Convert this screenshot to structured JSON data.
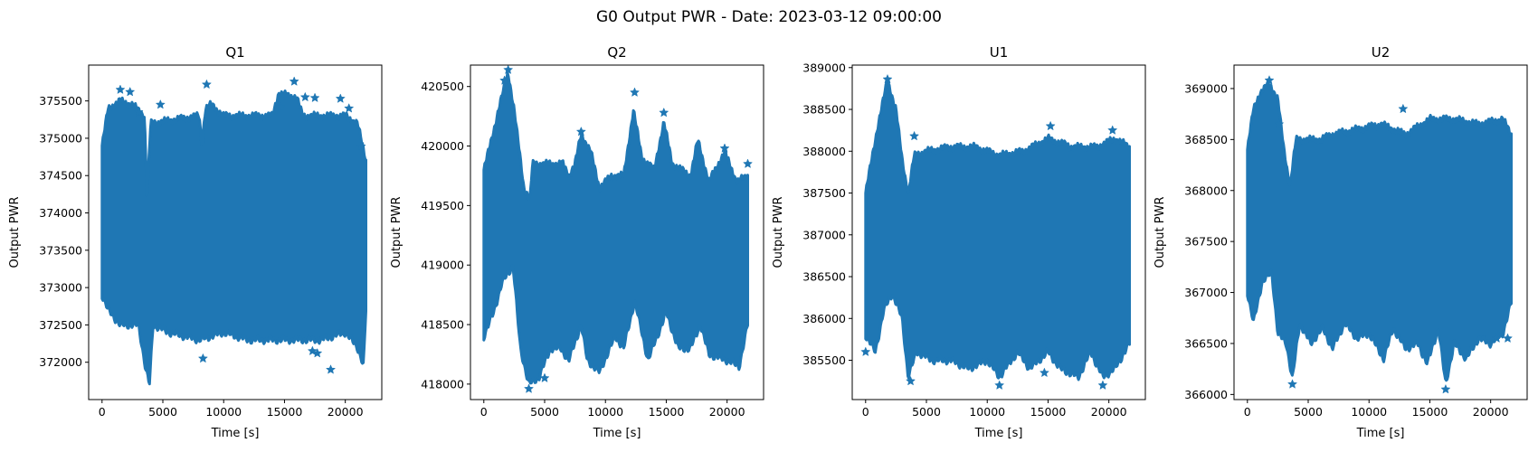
{
  "figure": {
    "suptitle": "G0 Output PWR - Date: 2023-03-12 09:00:00"
  },
  "colors": {
    "series": "#1f77b4",
    "axes": "#000000",
    "background": "#ffffff"
  },
  "chart_data": [
    {
      "type": "scatter",
      "marker": "star",
      "title": "Q1",
      "xlabel": "Time [s]",
      "ylabel": "Output PWR",
      "xlim": [
        -1100,
        23000
      ],
      "ylim": [
        371500,
        375980
      ],
      "xticks": [
        0,
        5000,
        10000,
        15000,
        20000
      ],
      "yticks": [
        372000,
        372500,
        373000,
        373500,
        374000,
        374500,
        375000,
        375500
      ],
      "x_range": [
        0,
        21700
      ],
      "band_upper": [
        [
          0,
          374900
        ],
        [
          500,
          375400
        ],
        [
          1500,
          375500
        ],
        [
          2500,
          375450
        ],
        [
          3500,
          375300
        ],
        [
          3700,
          374200
        ],
        [
          4000,
          375200
        ],
        [
          6000,
          375250
        ],
        [
          8000,
          375300
        ],
        [
          8200,
          374900
        ],
        [
          8500,
          375400
        ],
        [
          9000,
          375450
        ],
        [
          10000,
          375300
        ],
        [
          12000,
          375300
        ],
        [
          14000,
          375300
        ],
        [
          14500,
          375600
        ],
        [
          16000,
          375550
        ],
        [
          16500,
          375300
        ],
        [
          18000,
          375300
        ],
        [
          20000,
          375300
        ],
        [
          21000,
          375200
        ],
        [
          21700,
          374700
        ]
      ],
      "band_lower": [
        [
          0,
          372900
        ],
        [
          500,
          372700
        ],
        [
          1500,
          372500
        ],
        [
          3000,
          372500
        ],
        [
          3600,
          371900
        ],
        [
          3900,
          371700
        ],
        [
          4200,
          372500
        ],
        [
          5500,
          372400
        ],
        [
          8000,
          372300
        ],
        [
          10000,
          372400
        ],
        [
          12000,
          372300
        ],
        [
          14000,
          372300
        ],
        [
          16000,
          372300
        ],
        [
          18000,
          372300
        ],
        [
          20000,
          372400
        ],
        [
          21000,
          372200
        ],
        [
          21500,
          371950
        ],
        [
          21700,
          372700
        ]
      ],
      "outliers": [
        [
          1500,
          375650
        ],
        [
          2300,
          375620
        ],
        [
          8600,
          375720
        ],
        [
          15800,
          375760
        ],
        [
          16700,
          375550
        ],
        [
          17500,
          375540
        ],
        [
          19600,
          375530
        ],
        [
          20300,
          375400
        ],
        [
          14700,
          375420
        ],
        [
          4800,
          375450
        ],
        [
          3000,
          375350
        ],
        [
          18800,
          371900
        ],
        [
          17700,
          372120
        ],
        [
          17300,
          372150
        ],
        [
          8300,
          372050
        ],
        [
          21300,
          374890
        ]
      ]
    },
    {
      "type": "scatter",
      "marker": "star",
      "title": "Q2",
      "xlabel": "Time [s]",
      "ylabel": "Output PWR",
      "xlim": [
        -1100,
        23000
      ],
      "ylim": [
        417870,
        420680
      ],
      "xticks": [
        0,
        5000,
        10000,
        15000,
        20000
      ],
      "yticks": [
        418000,
        418500,
        419000,
        419500,
        420000,
        420500
      ],
      "x_range": [
        0,
        21700
      ],
      "band_upper": [
        [
          0,
          419800
        ],
        [
          500,
          420000
        ],
        [
          1200,
          420300
        ],
        [
          2000,
          420620
        ],
        [
          2500,
          420300
        ],
        [
          3300,
          419650
        ],
        [
          3800,
          419550
        ],
        [
          4000,
          419850
        ],
        [
          6500,
          419850
        ],
        [
          7000,
          419750
        ],
        [
          7500,
          419850
        ],
        [
          8000,
          420100
        ],
        [
          8800,
          419950
        ],
        [
          9500,
          419650
        ],
        [
          10500,
          419750
        ],
        [
          11500,
          419750
        ],
        [
          12300,
          420300
        ],
        [
          13000,
          419900
        ],
        [
          14000,
          419800
        ],
        [
          14800,
          420200
        ],
        [
          15500,
          419850
        ],
        [
          17000,
          419750
        ],
        [
          17600,
          420050
        ],
        [
          18500,
          419700
        ],
        [
          19800,
          419950
        ],
        [
          20800,
          419700
        ],
        [
          21700,
          419750
        ]
      ],
      "band_lower": [
        [
          0,
          418400
        ],
        [
          800,
          418600
        ],
        [
          1500,
          418850
        ],
        [
          2400,
          419000
        ],
        [
          3000,
          418300
        ],
        [
          3700,
          418000
        ],
        [
          4500,
          418050
        ],
        [
          5500,
          418300
        ],
        [
          6300,
          418300
        ],
        [
          7000,
          418200
        ],
        [
          8000,
          418500
        ],
        [
          8500,
          418200
        ],
        [
          9500,
          418100
        ],
        [
          10800,
          418400
        ],
        [
          11500,
          418300
        ],
        [
          12400,
          418700
        ],
        [
          13500,
          418200
        ],
        [
          15000,
          418600
        ],
        [
          16000,
          418300
        ],
        [
          17000,
          418300
        ],
        [
          17800,
          418500
        ],
        [
          18500,
          418250
        ],
        [
          20000,
          418200
        ],
        [
          21000,
          418150
        ],
        [
          21700,
          418500
        ]
      ],
      "outliers": [
        [
          2000,
          420640
        ],
        [
          1700,
          420550
        ],
        [
          8000,
          420120
        ],
        [
          12400,
          420450
        ],
        [
          14800,
          420280
        ],
        [
          19800,
          419980
        ],
        [
          3700,
          417960
        ],
        [
          5000,
          418050
        ],
        [
          21700,
          419850
        ]
      ]
    },
    {
      "type": "scatter",
      "marker": "star",
      "title": "U1",
      "xlabel": "Time [s]",
      "ylabel": "Output PWR",
      "xlim": [
        -1100,
        23000
      ],
      "ylim": [
        385030,
        389030
      ],
      "xticks": [
        0,
        5000,
        10000,
        15000,
        20000
      ],
      "yticks": [
        385500,
        386000,
        386500,
        387000,
        387500,
        388000,
        388500,
        389000
      ],
      "x_range": [
        0,
        21700
      ],
      "band_upper": [
        [
          0,
          387500
        ],
        [
          500,
          387900
        ],
        [
          1000,
          388300
        ],
        [
          1800,
          388850
        ],
        [
          2500,
          388500
        ],
        [
          3000,
          387900
        ],
        [
          3500,
          387500
        ],
        [
          4000,
          387950
        ],
        [
          5000,
          388000
        ],
        [
          7000,
          388050
        ],
        [
          9000,
          388050
        ],
        [
          11000,
          387950
        ],
        [
          13000,
          388000
        ],
        [
          15000,
          388150
        ],
        [
          17000,
          388050
        ],
        [
          19000,
          388050
        ],
        [
          20500,
          388150
        ],
        [
          21700,
          388050
        ]
      ],
      "band_lower": [
        [
          0,
          385800
        ],
        [
          800,
          385600
        ],
        [
          1500,
          386100
        ],
        [
          2200,
          386300
        ],
        [
          3000,
          386000
        ],
        [
          3500,
          385300
        ],
        [
          4200,
          385600
        ],
        [
          5500,
          385500
        ],
        [
          7000,
          385500
        ],
        [
          8500,
          385400
        ],
        [
          10000,
          385500
        ],
        [
          11000,
          385300
        ],
        [
          12500,
          385600
        ],
        [
          13500,
          385400
        ],
        [
          15000,
          385600
        ],
        [
          16000,
          385400
        ],
        [
          17500,
          385300
        ],
        [
          18500,
          385600
        ],
        [
          19500,
          385300
        ],
        [
          20500,
          385400
        ],
        [
          21700,
          385700
        ]
      ],
      "outliers": [
        [
          1800,
          388860
        ],
        [
          4000,
          388180
        ],
        [
          15200,
          388300
        ],
        [
          20300,
          388250
        ],
        [
          0,
          385600
        ],
        [
          3700,
          385250
        ],
        [
          11000,
          385200
        ],
        [
          19500,
          385200
        ],
        [
          14700,
          385350
        ]
      ]
    },
    {
      "type": "scatter",
      "marker": "star",
      "title": "U2",
      "xlabel": "Time [s]",
      "ylabel": "Output PWR",
      "xlim": [
        -1100,
        23000
      ],
      "ylim": [
        365950,
        369230
      ],
      "xticks": [
        0,
        5000,
        10000,
        15000,
        20000
      ],
      "yticks": [
        366000,
        366500,
        367000,
        367500,
        368000,
        368500,
        369000
      ],
      "x_range": [
        0,
        21700
      ],
      "band_upper": [
        [
          0,
          368400
        ],
        [
          500,
          368800
        ],
        [
          1000,
          368950
        ],
        [
          1800,
          369050
        ],
        [
          2500,
          368900
        ],
        [
          3000,
          368400
        ],
        [
          3500,
          368050
        ],
        [
          4000,
          368500
        ],
        [
          6000,
          368500
        ],
        [
          7000,
          368550
        ],
        [
          9000,
          368600
        ],
        [
          11000,
          368650
        ],
        [
          13000,
          368550
        ],
        [
          15000,
          368700
        ],
        [
          17000,
          368700
        ],
        [
          19000,
          368650
        ],
        [
          21000,
          368700
        ],
        [
          21700,
          368550
        ]
      ],
      "band_lower": [
        [
          0,
          367000
        ],
        [
          500,
          366700
        ],
        [
          1200,
          367100
        ],
        [
          2000,
          367200
        ],
        [
          2500,
          366600
        ],
        [
          3200,
          366500
        ],
        [
          3700,
          366150
        ],
        [
          4300,
          366700
        ],
        [
          5200,
          366500
        ],
        [
          6200,
          366650
        ],
        [
          7000,
          366450
        ],
        [
          8000,
          366700
        ],
        [
          9000,
          366550
        ],
        [
          10000,
          366600
        ],
        [
          11200,
          366350
        ],
        [
          12000,
          366650
        ],
        [
          13000,
          366450
        ],
        [
          14000,
          366500
        ],
        [
          14800,
          366300
        ],
        [
          15700,
          366650
        ],
        [
          16300,
          366100
        ],
        [
          17000,
          366500
        ],
        [
          18000,
          366350
        ],
        [
          19000,
          366550
        ],
        [
          20000,
          366500
        ],
        [
          21000,
          366600
        ],
        [
          21700,
          366900
        ]
      ],
      "outliers": [
        [
          1800,
          369080
        ],
        [
          2600,
          368650
        ],
        [
          12800,
          368800
        ],
        [
          3700,
          366100
        ],
        [
          16300,
          366050
        ],
        [
          21400,
          366550
        ],
        [
          20500,
          366550
        ]
      ]
    }
  ]
}
